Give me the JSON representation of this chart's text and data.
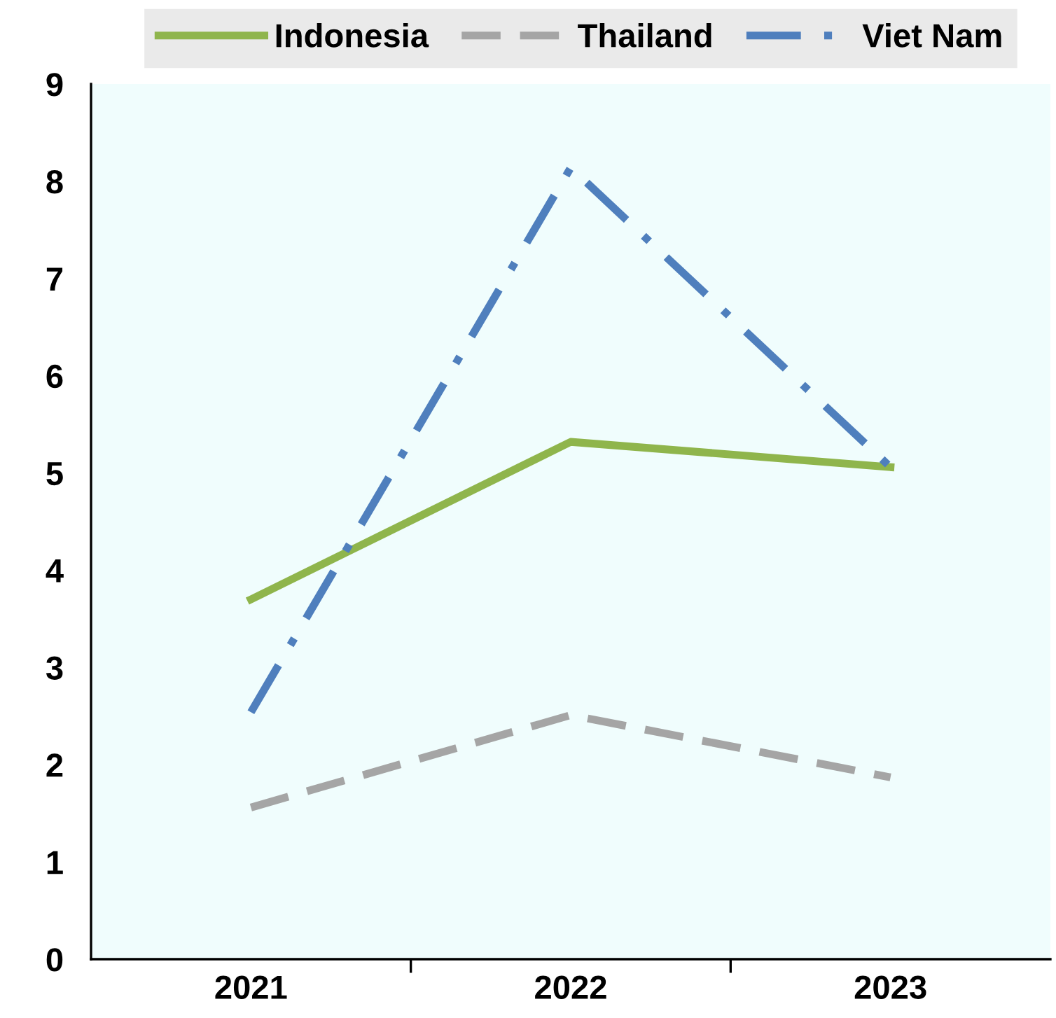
{
  "chart_data": {
    "type": "line",
    "categories": [
      "2021",
      "2022",
      "2023"
    ],
    "series": [
      {
        "name": "Indonesia",
        "color": "#8fb54c",
        "line_style": "solid",
        "values": [
          3.7,
          5.32,
          5.06
        ]
      },
      {
        "name": "Thailand",
        "color": "#a5a5a5",
        "line_style": "dashed",
        "values": [
          1.56,
          2.51,
          1.87
        ]
      },
      {
        "name": "Viet Nam",
        "color": "#4f7fbd",
        "line_style": "dashdot",
        "values": [
          2.54,
          8.14,
          5.06
        ]
      }
    ],
    "ylim": [
      0,
      9
    ],
    "yticks": [
      0,
      1,
      2,
      3,
      4,
      5,
      6,
      7,
      8,
      9
    ],
    "grid": false,
    "legend": "top",
    "marker": "none"
  }
}
